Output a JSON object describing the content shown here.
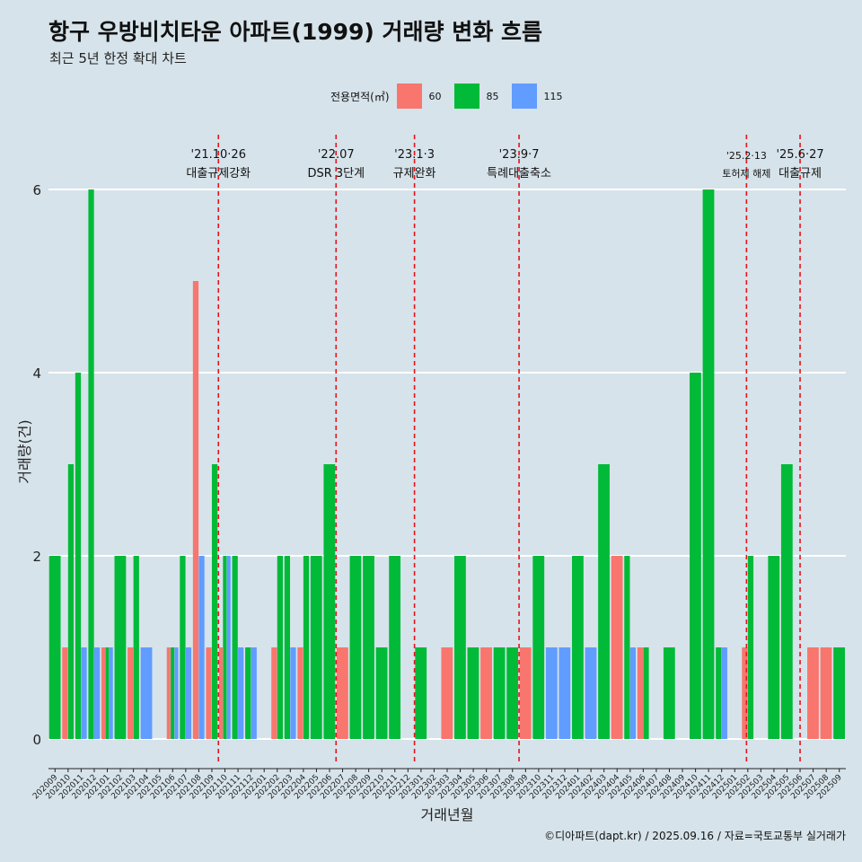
{
  "header": {
    "title": "항구 우방비치타운 아파트(1999) 거래량 변화 흐름",
    "subtitle": "최근 5년 한정 확대 차트"
  },
  "legend": {
    "title": "전용면적(㎡)",
    "items": [
      {
        "label": "60",
        "color": "#f8766d"
      },
      {
        "label": "85",
        "color": "#00ba38"
      },
      {
        "label": "115",
        "color": "#619cff"
      }
    ]
  },
  "caption": "©디아파트(dapt.kr) / 2025.09.16 / 자료=국토교통부 실거래가",
  "chart_data": {
    "type": "bar",
    "xlabel": "거래년월",
    "ylabel": "거래량(건)",
    "ylim": [
      0,
      6
    ],
    "yticks": [
      0,
      2,
      4,
      6
    ],
    "grid": true,
    "legend_position": "top",
    "categories": [
      "202009",
      "202010",
      "202011",
      "202012",
      "202101",
      "202102",
      "202103",
      "202104",
      "202105",
      "202106",
      "202107",
      "202108",
      "202109",
      "202110",
      "202111",
      "202112",
      "202201",
      "202202",
      "202203",
      "202204",
      "202205",
      "202206",
      "202207",
      "202208",
      "202209",
      "202210",
      "202211",
      "202212",
      "202301",
      "202302",
      "202303",
      "202304",
      "202305",
      "202306",
      "202307",
      "202308",
      "202309",
      "202310",
      "202311",
      "202312",
      "202401",
      "202402",
      "202403",
      "202404",
      "202405",
      "202406",
      "202407",
      "202408",
      "202409",
      "202410",
      "202411",
      "202412",
      "202501",
      "202502",
      "202503",
      "202504",
      "202505",
      "202506",
      "202507",
      "202508",
      "202509"
    ],
    "series": [
      {
        "name": "60",
        "color": "#f8766d",
        "values": [
          0,
          1,
          0,
          0,
          1,
          0,
          1,
          0,
          0,
          1,
          0,
          5,
          1,
          1,
          0,
          0,
          0,
          1,
          0,
          1,
          0,
          0,
          1,
          0,
          0,
          0,
          0,
          0,
          0,
          0,
          1,
          0,
          0,
          1,
          0,
          0,
          1,
          0,
          0,
          0,
          0,
          0,
          0,
          2,
          0,
          1,
          0,
          0,
          0,
          0,
          0,
          0,
          0,
          1,
          0,
          0,
          0,
          0,
          1,
          1,
          0
        ]
      },
      {
        "name": "85",
        "color": "#00ba38",
        "values": [
          2,
          3,
          4,
          6,
          1,
          2,
          2,
          0,
          0,
          1,
          2,
          0,
          3,
          2,
          2,
          1,
          0,
          2,
          2,
          2,
          2,
          3,
          0,
          2,
          2,
          1,
          2,
          0,
          1,
          0,
          0,
          2,
          1,
          0,
          1,
          1,
          0,
          2,
          0,
          0,
          2,
          0,
          3,
          0,
          2,
          1,
          0,
          1,
          0,
          4,
          6,
          1,
          0,
          2,
          0,
          2,
          3,
          0,
          0,
          0,
          1
        ]
      },
      {
        "name": "115",
        "color": "#619cff",
        "values": [
          0,
          0,
          1,
          1,
          1,
          0,
          0,
          1,
          0,
          1,
          1,
          2,
          0,
          2,
          1,
          1,
          0,
          0,
          1,
          0,
          0,
          0,
          0,
          0,
          0,
          0,
          0,
          0,
          0,
          0,
          0,
          0,
          0,
          0,
          0,
          0,
          0,
          0,
          1,
          1,
          0,
          1,
          0,
          0,
          1,
          0,
          0,
          0,
          0,
          0,
          0,
          1,
          0,
          0,
          0,
          0,
          0,
          0,
          0,
          0,
          0
        ]
      }
    ],
    "events": [
      {
        "pos": 13,
        "date": "'21.10·26",
        "label": "대출규제강화"
      },
      {
        "pos": 22,
        "date": "'22.07",
        "label": "DSR 3단계"
      },
      {
        "pos": 28,
        "date": "'23.1·3",
        "label": "규제완화"
      },
      {
        "pos": 36,
        "date": "'23.9·7",
        "label": "특례대출축소"
      },
      {
        "pos": 53.4,
        "date": "'25.2·13",
        "label": "토허제 해제"
      },
      {
        "pos": 57.5,
        "date": "'25.6·27",
        "label": "대출규제"
      }
    ]
  }
}
